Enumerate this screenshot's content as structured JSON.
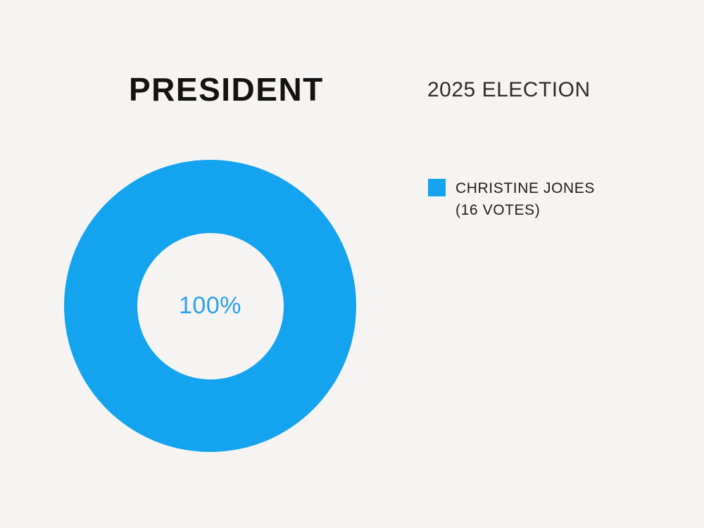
{
  "page": {
    "background_color": "#F5F4F2"
  },
  "header": {
    "title": "PRESIDENT",
    "subtitle": "2025 ELECTION"
  },
  "chart": {
    "center_label": "100%"
  },
  "legend": {
    "items": [
      {
        "line1": "CHRISTINE JONES",
        "line2": "(16 VOTES)",
        "swatch_color": "#14A3EF"
      }
    ]
  },
  "colors": {
    "accent_blue": "#14A3EF",
    "center_label_blue": "#2BA0EC",
    "title_text": "#131313",
    "legend_text": "#1E1D1B"
  },
  "chart_data": {
    "type": "pie",
    "donut": true,
    "title": "PRESIDENT",
    "subtitle": "2025 ELECTION",
    "labels": [
      "CHRISTINE JONES (16 VOTES)"
    ],
    "values": [
      16
    ],
    "percentages": [
      100
    ],
    "colors": [
      "#14A3EF"
    ],
    "center_label": "100%",
    "legend_position": "right"
  }
}
